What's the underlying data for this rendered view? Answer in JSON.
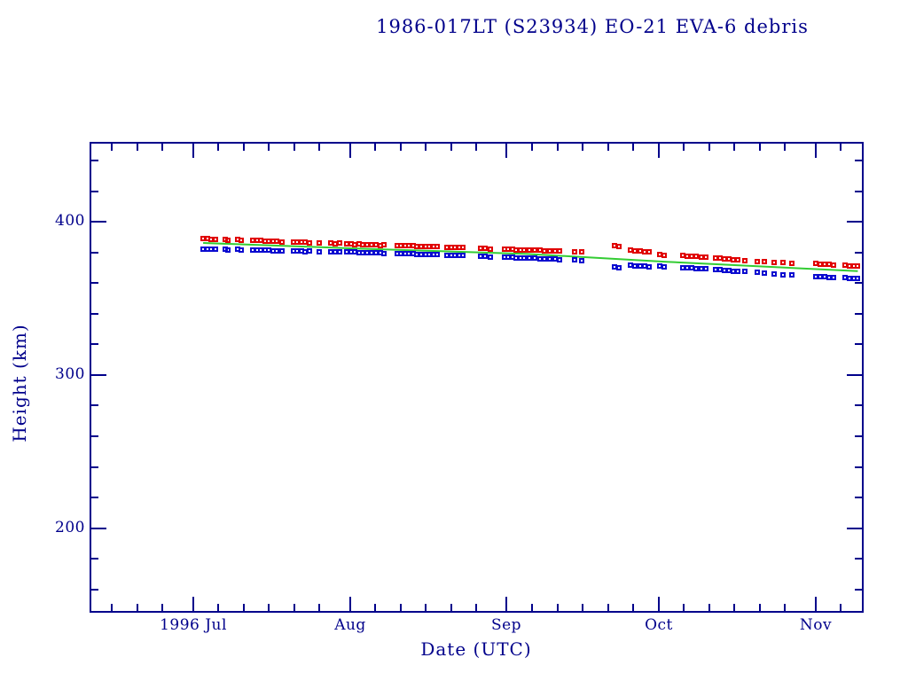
{
  "page": {
    "background": "#ffffff"
  },
  "colors": {
    "axis": "#00008b",
    "apogee_marker": "#e00000",
    "perigee_marker": "#0a0ad0",
    "mean_line": "#33cc33"
  },
  "chart_data": {
    "type": "scatter",
    "title": "1986-017LT (S23934) EO-21 EVA-6 debris",
    "xlabel": "Date (UTC)",
    "ylabel": "Height (km)",
    "x_unit": "days since 1996-07-01",
    "xlim": [
      -20.1,
      132.2
    ],
    "ylim": [
      146,
      451
    ],
    "grid": false,
    "legend": "none",
    "x_major_ticks": [
      {
        "day": 0,
        "label": "1996 Jul"
      },
      {
        "day": 31,
        "label": "Aug"
      },
      {
        "day": 62,
        "label": "Sep"
      },
      {
        "day": 92,
        "label": "Oct"
      },
      {
        "day": 123,
        "label": "Nov"
      }
    ],
    "x_minor_tick_days": [
      -16,
      -11,
      -6,
      5,
      10,
      15,
      20,
      25,
      36,
      41,
      46,
      51,
      56,
      67,
      72,
      77,
      82,
      87,
      97,
      102,
      107,
      112,
      117,
      128
    ],
    "y_major_ticks": [
      {
        "value": 200,
        "label": "200"
      },
      {
        "value": 300,
        "label": "300"
      },
      {
        "value": 400,
        "label": "400"
      }
    ],
    "y_minor_tick_values": [
      160,
      180,
      220,
      240,
      260,
      280,
      320,
      340,
      360,
      380,
      420,
      440
    ],
    "days": [
      2.0,
      2.8,
      3.6,
      4.5,
      6.3,
      6.9,
      8.8,
      9.6,
      11.8,
      12.6,
      13.4,
      14.2,
      15.0,
      15.8,
      16.6,
      17.6,
      19.8,
      20.6,
      21.4,
      22.2,
      23.0,
      25.0,
      27.3,
      28.1,
      28.9,
      30.4,
      31.2,
      32.0,
      32.8,
      33.6,
      34.4,
      35.2,
      36.2,
      37.0,
      37.8,
      40.3,
      41.1,
      41.9,
      42.7,
      43.5,
      44.3,
      45.1,
      45.9,
      46.7,
      47.5,
      48.3,
      50.2,
      51.0,
      51.8,
      52.6,
      53.4,
      56.8,
      57.8,
      58.8,
      61.5,
      62.3,
      63.1,
      63.9,
      64.7,
      65.5,
      66.5,
      67.5,
      68.5,
      69.5,
      70.5,
      71.5,
      72.5,
      75.5,
      76.8,
      83.3,
      84.2,
      86.5,
      87.4,
      88.3,
      89.2,
      90.1,
      92.3,
      93.2,
      96.8,
      97.7,
      98.6,
      99.5,
      100.4,
      101.3,
      103.2,
      104.1,
      105.0,
      105.9,
      106.8,
      107.7,
      109.0,
      111.5,
      113.0,
      114.8,
      116.6,
      118.4,
      123.0,
      123.9,
      124.8,
      125.7,
      126.6,
      128.8,
      129.7,
      130.6,
      131.4
    ],
    "series": [
      {
        "name": "apogee height",
        "marker": "open-square",
        "color_key": "apogee_marker",
        "values": [
          388.8,
          389.0,
          388.6,
          388.4,
          388.6,
          388.2,
          388.3,
          387.9,
          388.0,
          387.7,
          387.9,
          387.5,
          387.3,
          387.5,
          387.1,
          386.9,
          386.9,
          386.7,
          386.8,
          386.5,
          386.3,
          386.2,
          386.1,
          385.8,
          385.9,
          385.7,
          385.4,
          385.2,
          385.5,
          385.1,
          385.3,
          384.9,
          385.0,
          384.7,
          384.8,
          384.6,
          384.4,
          384.5,
          384.2,
          384.3,
          384.0,
          384.1,
          383.8,
          383.9,
          383.7,
          383.6,
          383.5,
          383.3,
          383.4,
          383.1,
          383.0,
          382.8,
          382.6,
          382.4,
          382.1,
          381.9,
          382.0,
          381.7,
          381.8,
          381.5,
          381.6,
          381.3,
          381.4,
          381.1,
          381.0,
          380.9,
          380.8,
          380.6,
          380.3,
          384.6,
          384.1,
          381.6,
          381.2,
          380.9,
          380.5,
          380.2,
          378.7,
          378.3,
          377.9,
          377.6,
          377.7,
          377.3,
          377.1,
          376.9,
          376.4,
          376.1,
          375.8,
          375.5,
          375.2,
          374.9,
          374.5,
          374.1,
          373.8,
          373.5,
          373.2,
          372.9,
          372.7,
          372.4,
          372.5,
          372.1,
          371.9,
          371.6,
          371.3,
          371.4,
          371.0
        ]
      },
      {
        "name": "perigee height",
        "marker": "open-square",
        "color_key": "perigee_marker",
        "values": [
          382.2,
          382.4,
          382.0,
          381.9,
          382.1,
          381.8,
          381.9,
          381.6,
          381.7,
          381.5,
          381.6,
          381.3,
          381.4,
          381.1,
          381.2,
          380.9,
          381.0,
          380.8,
          380.9,
          380.6,
          380.7,
          380.5,
          380.6,
          380.3,
          380.4,
          380.5,
          380.2,
          380.4,
          380.0,
          380.1,
          379.8,
          379.9,
          379.7,
          379.8,
          379.5,
          379.4,
          379.2,
          379.3,
          379.0,
          379.1,
          378.8,
          378.9,
          378.6,
          378.7,
          378.5,
          378.4,
          378.3,
          378.1,
          378.2,
          377.9,
          377.8,
          377.6,
          377.4,
          377.2,
          377.0,
          376.8,
          376.9,
          376.6,
          376.4,
          376.5,
          376.2,
          376.3,
          376.0,
          375.8,
          375.9,
          375.6,
          375.4,
          374.9,
          374.6,
          370.4,
          370.1,
          371.5,
          371.3,
          371.1,
          370.9,
          370.7,
          370.9,
          370.7,
          369.9,
          369.7,
          369.8,
          369.5,
          369.3,
          369.4,
          369.1,
          368.8,
          368.5,
          368.2,
          367.9,
          367.7,
          367.4,
          367.0,
          366.6,
          366.1,
          365.6,
          365.1,
          364.4,
          364.1,
          364.2,
          363.8,
          363.6,
          363.5,
          363.2,
          363.3,
          362.9
        ]
      },
      {
        "name": "mean height",
        "type": "line",
        "color_key": "mean_line",
        "points": [
          [
            2.0,
            386.2
          ],
          [
            32.0,
            382.6
          ],
          [
            66.0,
            379.0
          ],
          [
            93.5,
            373.9
          ],
          [
            131.4,
            367.8
          ]
        ]
      }
    ]
  }
}
